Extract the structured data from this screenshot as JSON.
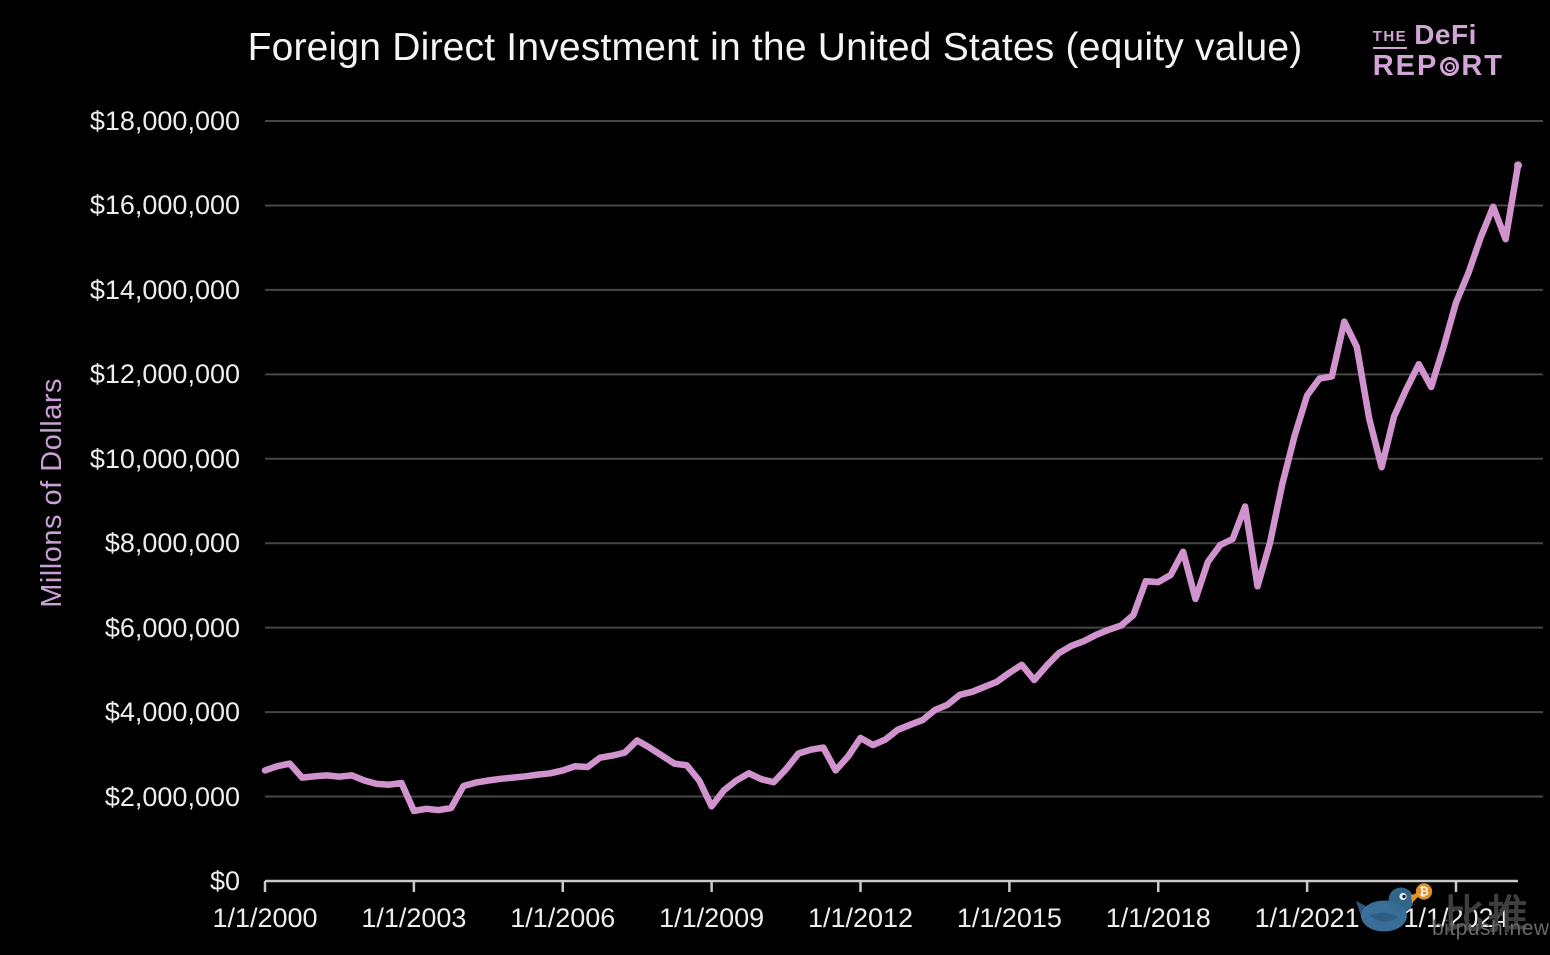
{
  "title": "Foreign Direct Investment in the United States (equity value)",
  "logo": {
    "the": "THE",
    "defi": "DeFi",
    "report_pre": "REP",
    "report_o": "◎",
    "report_post": "RT"
  },
  "y_axis": {
    "title": "Millons of Dollars",
    "tick_labels": [
      "$18,000,000",
      "$16,000,000",
      "$14,000,000",
      "$12,000,000",
      "$10,000,000",
      "$8,000,000",
      "$6,000,000",
      "$4,000,000",
      "$2,000,000",
      "$0"
    ]
  },
  "x_axis": {
    "ticks": [
      {
        "label": "1/1/2000",
        "year": 2000
      },
      {
        "label": "1/1/2003",
        "year": 2003
      },
      {
        "label": "1/1/2006",
        "year": 2006
      },
      {
        "label": "1/1/2009",
        "year": 2009
      },
      {
        "label": "1/1/2012",
        "year": 2012
      },
      {
        "label": "1/1/2015",
        "year": 2015
      },
      {
        "label": "1/1/2018",
        "year": 2018
      },
      {
        "label": "1/1/2021",
        "year": 2021
      },
      {
        "label": "1/1/2024",
        "year": 2024
      }
    ]
  },
  "watermark": {
    "cn": "比推",
    "site": "bitpush.news",
    "coin_symbol": "₿"
  },
  "colors": {
    "background": "#000000",
    "line": "#d193ce",
    "grid": "#474747",
    "axis": "#c9c9c9",
    "tick_text": "#ededed",
    "accent_purple": "#c9a0d4",
    "bird_blue": "#3c74a0",
    "bird_blue_dark": "#2e5b82",
    "coin_orange": "#e8972c"
  },
  "chart_data": {
    "type": "line",
    "title": "Foreign Direct Investment in the United States (equity value)",
    "xlabel": "",
    "ylabel": "Millons of Dollars",
    "x_unit": "decimal year, quarterly observations",
    "x_start": 2000.0,
    "x_step": 0.25,
    "xlim": [
      2000.0,
      2025.7
    ],
    "ylim": [
      0,
      18000000
    ],
    "y_tick_interval": 2000000,
    "grid": "horizontal",
    "legend": "none",
    "series": [
      {
        "name": "FDI in the U.S. (equity value, millions of dollars)",
        "color": "#d193ce",
        "values": [
          2620000,
          2720000,
          2780000,
          2450000,
          2480000,
          2500000,
          2470000,
          2500000,
          2380000,
          2300000,
          2280000,
          2320000,
          1660000,
          1710000,
          1680000,
          1730000,
          2250000,
          2330000,
          2380000,
          2420000,
          2450000,
          2480000,
          2520000,
          2550000,
          2620000,
          2720000,
          2700000,
          2920000,
          2970000,
          3040000,
          3330000,
          3160000,
          2970000,
          2780000,
          2740000,
          2380000,
          1770000,
          2150000,
          2380000,
          2550000,
          2410000,
          2340000,
          2650000,
          3020000,
          3110000,
          3160000,
          2620000,
          2950000,
          3390000,
          3220000,
          3350000,
          3580000,
          3700000,
          3810000,
          4050000,
          4170000,
          4410000,
          4480000,
          4600000,
          4720000,
          4930000,
          5120000,
          4760000,
          5100000,
          5400000,
          5570000,
          5680000,
          5830000,
          5950000,
          6050000,
          6300000,
          7100000,
          7080000,
          7250000,
          7800000,
          6680000,
          7560000,
          7960000,
          8100000,
          8870000,
          6980000,
          8000000,
          9400000,
          10550000,
          11500000,
          11900000,
          11950000,
          13250000,
          12650000,
          10950000,
          9800000,
          11000000,
          11650000,
          12240000,
          11700000,
          12650000,
          13700000,
          14400000,
          15250000,
          15970000,
          15200000,
          16950000
        ]
      }
    ]
  }
}
